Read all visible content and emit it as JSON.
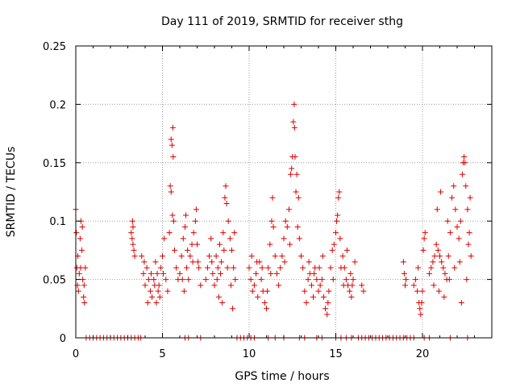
{
  "chart_data": {
    "type": "scatter",
    "title": "Day 111 of 2019, SRMTID for receiver sthg",
    "xlabel": "GPS time / hours",
    "ylabel": "SRMTID / TECUs",
    "xlim": [
      0,
      24
    ],
    "ylim": [
      0,
      0.25
    ],
    "grid": true,
    "marker": "+",
    "colors": {
      "points": "#dd0000",
      "grid": "#a0a0a0",
      "axes": "#000000"
    },
    "x_ticks": [
      {
        "value": 0,
        "label": "0"
      },
      {
        "value": 5,
        "label": "5"
      },
      {
        "value": 10,
        "label": "10"
      },
      {
        "value": 15,
        "label": "15"
      },
      {
        "value": 20,
        "label": "20"
      }
    ],
    "y_ticks": [
      {
        "value": 0,
        "label": "0"
      },
      {
        "value": 0.05,
        "label": "0.05"
      },
      {
        "value": 0.1,
        "label": "0.1"
      },
      {
        "value": 0.15,
        "label": "0.15"
      },
      {
        "value": 0.2,
        "label": "0.2"
      },
      {
        "value": 0.25,
        "label": "0.25"
      }
    ],
    "series": [
      {
        "name": "sthg",
        "points": [
          [
            0.0,
            0.11
          ],
          [
            0.03,
            0.09
          ],
          [
            0.06,
            0.06
          ],
          [
            0.1,
            0.045
          ],
          [
            0.15,
            0.04
          ],
          [
            0.2,
            0.055
          ],
          [
            0.25,
            0.085
          ],
          [
            0.3,
            0.1
          ],
          [
            0.35,
            0.075
          ],
          [
            0.4,
            0.05
          ],
          [
            0.45,
            0.035
          ],
          [
            0.5,
            0.03
          ],
          [
            0.55,
            0.06
          ],
          [
            0.12,
            0.07
          ],
          [
            0.28,
            0.06
          ],
          [
            0.38,
            0.095
          ],
          [
            0.48,
            0.045
          ],
          [
            3.2,
            0.09
          ],
          [
            3.25,
            0.085
          ],
          [
            3.3,
            0.08
          ],
          [
            3.35,
            0.075
          ],
          [
            3.4,
            0.07
          ],
          [
            3.3,
            0.095
          ],
          [
            3.28,
            0.1
          ],
          [
            3.8,
            0.07
          ],
          [
            3.9,
            0.055
          ],
          [
            4.0,
            0.045
          ],
          [
            4.1,
            0.06
          ],
          [
            4.2,
            0.05
          ],
          [
            4.3,
            0.04
          ],
          [
            4.4,
            0.035
          ],
          [
            4.5,
            0.05
          ],
          [
            4.6,
            0.065
          ],
          [
            4.7,
            0.055
          ],
          [
            4.8,
            0.045
          ],
          [
            4.9,
            0.06
          ],
          [
            5.0,
            0.07
          ],
          [
            5.1,
            0.085
          ],
          [
            5.2,
            0.05
          ],
          [
            5.3,
            0.04
          ],
          [
            4.15,
            0.03
          ],
          [
            4.35,
            0.055
          ],
          [
            4.65,
            0.03
          ],
          [
            4.75,
            0.04
          ],
          [
            3.95,
            0.065
          ],
          [
            4.55,
            0.045
          ],
          [
            4.85,
            0.035
          ],
          [
            5.05,
            0.055
          ],
          [
            5.4,
            0.09
          ],
          [
            5.45,
            0.13
          ],
          [
            5.5,
            0.17
          ],
          [
            5.55,
            0.165
          ],
          [
            5.6,
            0.18
          ],
          [
            5.62,
            0.155
          ],
          [
            5.65,
            0.1
          ],
          [
            5.7,
            0.075
          ],
          [
            5.8,
            0.06
          ],
          [
            5.9,
            0.05
          ],
          [
            5.5,
            0.125
          ],
          [
            5.58,
            0.105
          ],
          [
            6.0,
            0.055
          ],
          [
            6.1,
            0.07
          ],
          [
            6.2,
            0.085
          ],
          [
            6.3,
            0.095
          ],
          [
            6.4,
            0.06
          ],
          [
            6.5,
            0.05
          ],
          [
            6.6,
            0.07
          ],
          [
            6.7,
            0.08
          ],
          [
            6.8,
            0.09
          ],
          [
            6.9,
            0.1
          ],
          [
            7.0,
            0.08
          ],
          [
            7.1,
            0.06
          ],
          [
            7.2,
            0.045
          ],
          [
            6.25,
            0.04
          ],
          [
            6.45,
            0.075
          ],
          [
            6.75,
            0.065
          ],
          [
            6.95,
            0.11
          ],
          [
            7.05,
            0.065
          ],
          [
            6.35,
            0.105
          ],
          [
            6.15,
            0.05
          ],
          [
            7.5,
            0.05
          ],
          [
            7.6,
            0.06
          ],
          [
            7.7,
            0.07
          ],
          [
            7.8,
            0.085
          ],
          [
            7.9,
            0.055
          ],
          [
            8.0,
            0.045
          ],
          [
            8.1,
            0.07
          ],
          [
            8.2,
            0.06
          ],
          [
            8.3,
            0.08
          ],
          [
            8.4,
            0.065
          ],
          [
            8.5,
            0.09
          ],
          [
            8.6,
            0.12
          ],
          [
            8.65,
            0.13
          ],
          [
            8.7,
            0.115
          ],
          [
            8.8,
            0.1
          ],
          [
            8.9,
            0.085
          ],
          [
            9.0,
            0.075
          ],
          [
            9.1,
            0.06
          ],
          [
            9.2,
            0.05
          ],
          [
            8.25,
            0.035
          ],
          [
            8.45,
            0.03
          ],
          [
            9.05,
            0.025
          ],
          [
            7.85,
            0.065
          ],
          [
            8.15,
            0.05
          ],
          [
            8.35,
            0.055
          ],
          [
            8.55,
            0.075
          ],
          [
            8.75,
            0.06
          ],
          [
            8.95,
            0.045
          ],
          [
            9.15,
            0.09
          ],
          [
            10.0,
            0.06
          ],
          [
            10.1,
            0.05
          ],
          [
            10.2,
            0.04
          ],
          [
            10.3,
            0.045
          ],
          [
            10.4,
            0.055
          ],
          [
            10.5,
            0.035
          ],
          [
            10.6,
            0.065
          ],
          [
            10.7,
            0.05
          ],
          [
            10.8,
            0.04
          ],
          [
            10.9,
            0.03
          ],
          [
            11.0,
            0.025
          ],
          [
            11.1,
            0.06
          ],
          [
            11.2,
            0.08
          ],
          [
            11.3,
            0.1
          ],
          [
            11.35,
            0.12
          ],
          [
            11.4,
            0.095
          ],
          [
            11.5,
            0.07
          ],
          [
            11.6,
            0.055
          ],
          [
            11.7,
            0.045
          ],
          [
            10.45,
            0.065
          ],
          [
            10.75,
            0.06
          ],
          [
            11.05,
            0.04
          ],
          [
            11.25,
            0.055
          ],
          [
            10.15,
            0.07
          ],
          [
            11.8,
            0.06
          ],
          [
            11.9,
            0.07
          ],
          [
            12.0,
            0.085
          ],
          [
            12.1,
            0.1
          ],
          [
            12.2,
            0.095
          ],
          [
            12.3,
            0.11
          ],
          [
            12.4,
            0.14
          ],
          [
            12.5,
            0.155
          ],
          [
            12.55,
            0.185
          ],
          [
            12.6,
            0.2
          ],
          [
            12.62,
            0.18
          ],
          [
            12.65,
            0.155
          ],
          [
            12.7,
            0.125
          ],
          [
            12.8,
            0.095
          ],
          [
            12.9,
            0.085
          ],
          [
            13.0,
            0.07
          ],
          [
            13.1,
            0.06
          ],
          [
            12.45,
            0.145
          ],
          [
            12.75,
            0.14
          ],
          [
            12.85,
            0.12
          ],
          [
            12.05,
            0.065
          ],
          [
            12.35,
            0.08
          ],
          [
            13.2,
            0.04
          ],
          [
            13.3,
            0.03
          ],
          [
            13.4,
            0.05
          ],
          [
            13.5,
            0.055
          ],
          [
            13.6,
            0.045
          ],
          [
            13.7,
            0.035
          ],
          [
            13.8,
            0.06
          ],
          [
            13.9,
            0.05
          ],
          [
            14.0,
            0.04
          ],
          [
            14.1,
            0.045
          ],
          [
            14.2,
            0.05
          ],
          [
            14.3,
            0.035
          ],
          [
            14.4,
            0.025
          ],
          [
            14.5,
            0.02
          ],
          [
            14.6,
            0.04
          ],
          [
            14.7,
            0.06
          ],
          [
            14.8,
            0.075
          ],
          [
            14.9,
            0.08
          ],
          [
            15.0,
            0.09
          ],
          [
            15.05,
            0.1
          ],
          [
            15.1,
            0.105
          ],
          [
            15.15,
            0.12
          ],
          [
            15.2,
            0.125
          ],
          [
            15.25,
            0.085
          ],
          [
            15.3,
            0.06
          ],
          [
            15.4,
            0.07
          ],
          [
            15.5,
            0.06
          ],
          [
            15.6,
            0.05
          ],
          [
            15.7,
            0.045
          ],
          [
            15.8,
            0.04
          ],
          [
            15.9,
            0.035
          ],
          [
            16.0,
            0.05
          ],
          [
            16.1,
            0.065
          ],
          [
            13.45,
            0.065
          ],
          [
            13.75,
            0.055
          ],
          [
            14.05,
            0.06
          ],
          [
            14.25,
            0.07
          ],
          [
            14.55,
            0.03
          ],
          [
            14.85,
            0.05
          ],
          [
            15.45,
            0.045
          ],
          [
            15.65,
            0.075
          ],
          [
            15.85,
            0.055
          ],
          [
            15.95,
            0.045
          ],
          [
            16.5,
            0.045
          ],
          [
            16.6,
            0.04
          ],
          [
            18.9,
            0.065
          ],
          [
            18.95,
            0.055
          ],
          [
            19.0,
            0.045
          ],
          [
            19.05,
            0.05
          ],
          [
            19.5,
            0.045
          ],
          [
            19.6,
            0.05
          ],
          [
            19.7,
            0.04
          ],
          [
            19.8,
            0.03
          ],
          [
            19.85,
            0.025
          ],
          [
            19.9,
            0.02
          ],
          [
            19.95,
            0.03
          ],
          [
            20.0,
            0.04
          ],
          [
            20.05,
            0.075
          ],
          [
            20.1,
            0.085
          ],
          [
            20.15,
            0.09
          ],
          [
            19.75,
            0.06
          ],
          [
            20.4,
            0.055
          ],
          [
            20.5,
            0.06
          ],
          [
            20.6,
            0.065
          ],
          [
            20.7,
            0.07
          ],
          [
            20.8,
            0.08
          ],
          [
            20.9,
            0.075
          ],
          [
            21.0,
            0.07
          ],
          [
            21.1,
            0.065
          ],
          [
            21.2,
            0.06
          ],
          [
            21.3,
            0.055
          ],
          [
            21.4,
            0.05
          ],
          [
            21.5,
            0.07
          ],
          [
            21.6,
            0.09
          ],
          [
            21.7,
            0.12
          ],
          [
            21.8,
            0.13
          ],
          [
            21.9,
            0.11
          ],
          [
            22.0,
            0.095
          ],
          [
            22.1,
            0.085
          ],
          [
            22.2,
            0.1
          ],
          [
            22.3,
            0.14
          ],
          [
            22.35,
            0.15
          ],
          [
            22.4,
            0.155
          ],
          [
            22.45,
            0.15
          ],
          [
            22.5,
            0.13
          ],
          [
            22.6,
            0.11
          ],
          [
            22.7,
            0.09
          ],
          [
            22.8,
            0.07
          ],
          [
            20.65,
            0.045
          ],
          [
            20.95,
            0.04
          ],
          [
            21.25,
            0.035
          ],
          [
            21.55,
            0.05
          ],
          [
            21.85,
            0.06
          ],
          [
            22.15,
            0.065
          ],
          [
            22.55,
            0.05
          ],
          [
            22.65,
            0.08
          ],
          [
            20.85,
            0.11
          ],
          [
            21.05,
            0.125
          ],
          [
            21.45,
            0.1
          ],
          [
            22.25,
            0.03
          ],
          [
            22.75,
            0.12
          ],
          [
            0.6,
            0
          ],
          [
            0.8,
            0
          ],
          [
            1.0,
            0
          ],
          [
            1.2,
            0
          ],
          [
            1.4,
            0
          ],
          [
            1.6,
            0
          ],
          [
            1.8,
            0
          ],
          [
            2.0,
            0
          ],
          [
            2.2,
            0
          ],
          [
            2.4,
            0
          ],
          [
            2.6,
            0
          ],
          [
            2.8,
            0
          ],
          [
            3.0,
            0
          ],
          [
            3.2,
            0
          ],
          [
            3.4,
            0
          ],
          [
            3.6,
            0
          ],
          [
            3.75,
            0
          ],
          [
            6.3,
            0
          ],
          [
            6.5,
            0
          ],
          [
            7.2,
            0
          ],
          [
            9.3,
            0
          ],
          [
            9.5,
            0
          ],
          [
            9.7,
            0
          ],
          [
            9.9,
            0
          ],
          [
            10.1,
            0
          ],
          [
            10.3,
            0
          ],
          [
            11.1,
            0
          ],
          [
            11.5,
            0
          ],
          [
            12.0,
            0
          ],
          [
            12.9,
            0
          ],
          [
            13.2,
            0
          ],
          [
            13.9,
            0
          ],
          [
            14.2,
            0
          ],
          [
            15.0,
            0
          ],
          [
            15.3,
            0
          ],
          [
            15.6,
            0
          ],
          [
            15.9,
            0
          ],
          [
            16.3,
            0
          ],
          [
            16.5,
            0
          ],
          [
            16.7,
            0
          ],
          [
            16.9,
            0
          ],
          [
            17.1,
            0
          ],
          [
            17.3,
            0
          ],
          [
            17.5,
            0
          ],
          [
            17.7,
            0
          ],
          [
            17.9,
            0
          ],
          [
            18.1,
            0
          ],
          [
            18.3,
            0
          ],
          [
            18.5,
            0
          ],
          [
            18.7,
            0
          ],
          [
            18.9,
            0
          ],
          [
            19.1,
            0
          ],
          [
            19.3,
            0
          ],
          [
            19.5,
            0
          ],
          [
            20.1,
            0
          ],
          [
            20.4,
            0
          ],
          [
            21.6,
            0
          ],
          [
            22.6,
            0
          ]
        ]
      }
    ]
  }
}
